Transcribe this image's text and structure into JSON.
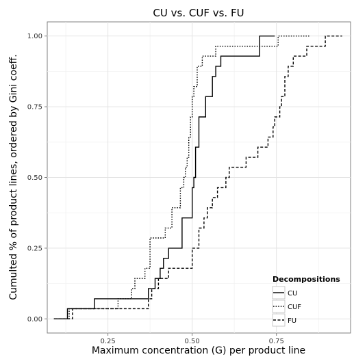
{
  "chart_data": {
    "type": "line",
    "title": "CU vs. CUF vs. FU",
    "xlabel": "Maximum concentration (G) per product line",
    "ylabel": "Cumulted % of product lines, ordered by Gini coeff.",
    "xlim": [
      0.07,
      0.97
    ],
    "ylim": [
      -0.05,
      1.05
    ],
    "x_ticks": [
      0.25,
      0.5,
      0.75
    ],
    "x_tick_labels": [
      "0.25",
      "0.50",
      "0.75"
    ],
    "y_ticks": [
      0.0,
      0.25,
      0.5,
      0.75,
      1.0
    ],
    "y_tick_labels": [
      "0.00",
      "0.25",
      "0.50",
      "0.75",
      "1.00"
    ],
    "grid": true,
    "legend": {
      "title": "Decompositions",
      "position": "bottom-right"
    },
    "series": [
      {
        "name": "CU",
        "line_style": "solid",
        "x": [
          0.09,
          0.13,
          0.21,
          0.37,
          0.39,
          0.405,
          0.415,
          0.43,
          0.47,
          0.5,
          0.505,
          0.51,
          0.52,
          0.54,
          0.56,
          0.57,
          0.585,
          0.63,
          0.7,
          0.745
        ],
        "y": [
          0.0,
          0.036,
          0.071,
          0.107,
          0.143,
          0.179,
          0.214,
          0.25,
          0.357,
          0.464,
          0.5,
          0.607,
          0.714,
          0.786,
          0.857,
          0.893,
          0.929,
          0.929,
          1.0,
          1.0
        ]
      },
      {
        "name": "CUF",
        "line_style": "dotted",
        "x": [
          0.09,
          0.135,
          0.28,
          0.32,
          0.33,
          0.36,
          0.375,
          0.42,
          0.44,
          0.465,
          0.475,
          0.48,
          0.485,
          0.49,
          0.495,
          0.5,
          0.505,
          0.515,
          0.53,
          0.57,
          0.69,
          0.755,
          0.8,
          0.83,
          0.85
        ],
        "y": [
          0.0,
          0.036,
          0.071,
          0.107,
          0.143,
          0.179,
          0.286,
          0.321,
          0.393,
          0.464,
          0.5,
          0.536,
          0.571,
          0.643,
          0.714,
          0.786,
          0.821,
          0.893,
          0.929,
          0.964,
          0.964,
          1.0,
          1.0,
          1.0,
          1.0
        ]
      },
      {
        "name": "FU",
        "line_style": "dashed",
        "x": [
          0.09,
          0.145,
          0.37,
          0.38,
          0.4,
          0.43,
          0.5,
          0.52,
          0.535,
          0.545,
          0.56,
          0.575,
          0.6,
          0.61,
          0.63,
          0.66,
          0.695,
          0.725,
          0.74,
          0.745,
          0.76,
          0.765,
          0.775,
          0.785,
          0.8,
          0.84,
          0.87,
          0.88,
          0.895,
          0.945
        ],
        "y": [
          0.0,
          0.036,
          0.071,
          0.107,
          0.143,
          0.179,
          0.25,
          0.321,
          0.357,
          0.393,
          0.429,
          0.464,
          0.5,
          0.536,
          0.536,
          0.571,
          0.607,
          0.643,
          0.679,
          0.714,
          0.75,
          0.786,
          0.857,
          0.893,
          0.929,
          0.964,
          0.964,
          0.964,
          1.0,
          1.0
        ]
      }
    ]
  }
}
